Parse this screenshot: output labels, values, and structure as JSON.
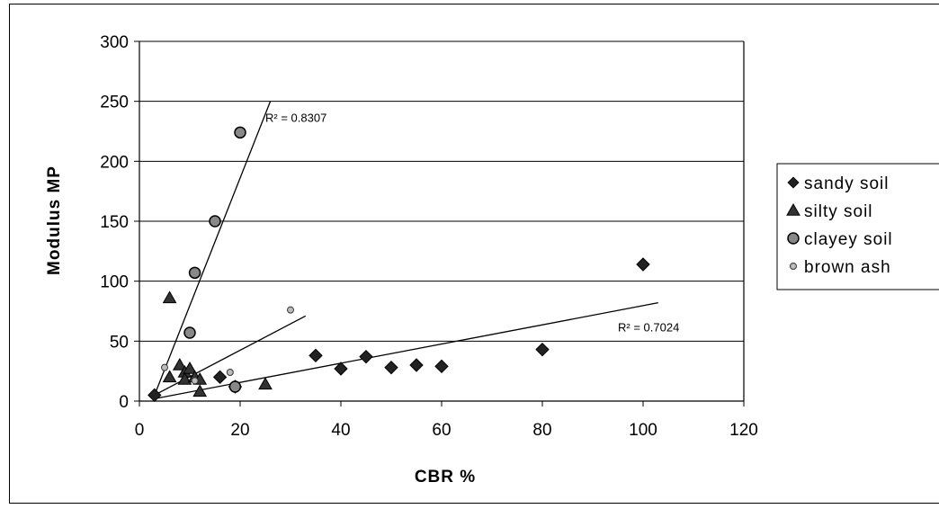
{
  "chart_data": {
    "type": "scatter",
    "xlabel": "CBR %",
    "ylabel": "Modulus MP",
    "xlim": [
      0,
      120
    ],
    "ylim": [
      0,
      300
    ],
    "xticks": [
      "0",
      "20",
      "40",
      "60",
      "80",
      "100",
      "120"
    ],
    "yticks": [
      "0",
      "50",
      "100",
      "150",
      "200",
      "250",
      "300"
    ],
    "grid": "horizontal",
    "legend_position": "right",
    "series": [
      {
        "name": "sandy soil",
        "marker": "diamond",
        "color": "#000000",
        "points": [
          [
            3,
            5
          ],
          [
            16,
            20
          ],
          [
            19,
            12
          ],
          [
            35,
            38
          ],
          [
            40,
            27
          ],
          [
            45,
            37
          ],
          [
            50,
            28
          ],
          [
            55,
            30
          ],
          [
            60,
            29
          ],
          [
            80,
            43
          ],
          [
            100,
            114
          ]
        ]
      },
      {
        "name": "silty soil",
        "marker": "triangle",
        "color": "#000000",
        "points": [
          [
            6,
            86
          ],
          [
            6,
            20
          ],
          [
            8,
            30
          ],
          [
            9,
            24
          ],
          [
            9,
            18
          ],
          [
            10,
            27
          ],
          [
            11,
            20
          ],
          [
            12,
            8
          ],
          [
            12,
            18
          ],
          [
            25,
            14
          ]
        ]
      },
      {
        "name": "clayey soil",
        "marker": "circle",
        "color": "#000000",
        "points": [
          [
            20,
            224
          ],
          [
            15,
            150
          ],
          [
            11,
            107
          ],
          [
            10,
            57
          ],
          [
            19,
            12
          ]
        ]
      },
      {
        "name": "brown ash",
        "marker": "small-circle",
        "color": "#000000",
        "points": [
          [
            5,
            28
          ],
          [
            11,
            17
          ],
          [
            18,
            24
          ],
          [
            30,
            76
          ]
        ]
      }
    ],
    "trendlines": [
      {
        "series": "clayey soil",
        "x": [
          3,
          26
        ],
        "y": [
          5,
          250
        ],
        "label": "R² = 0.8307",
        "label_at": [
          25,
          233
        ]
      },
      {
        "series": "sandy soil",
        "x": [
          3,
          103
        ],
        "y": [
          2,
          82
        ],
        "label": "R² = 0.7024",
        "label_at": [
          95,
          58
        ]
      },
      {
        "series": "brown ash",
        "x": [
          3,
          33
        ],
        "y": [
          5,
          71
        ],
        "label": "",
        "label_at": [
          0,
          0
        ]
      }
    ]
  }
}
